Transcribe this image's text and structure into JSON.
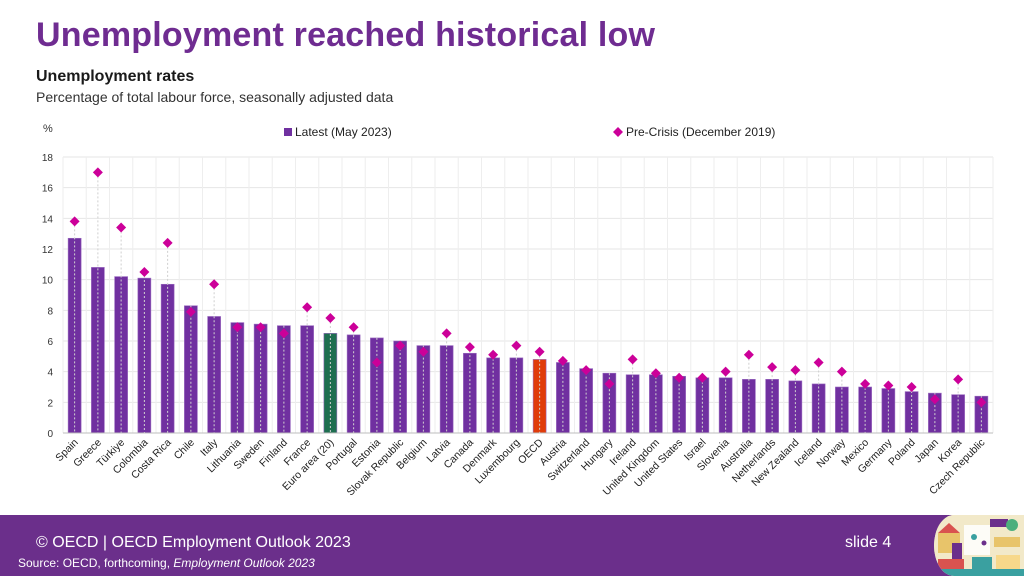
{
  "slide": {
    "title": "Unemployment reached historical low",
    "chart_title": "Unemployment rates",
    "chart_subtitle": "Percentage of total labour force, seasonally adjusted data",
    "footer": {
      "copyright": "© OECD | OECD Employment Outlook 2023",
      "source_prefix": "Source: OECD, forthcoming, ",
      "source_title": "Employment Outlook 2023",
      "slide_number": "slide 4",
      "illustration": "employment-outlook-cover-illustration"
    }
  },
  "colors": {
    "title": "#6f2c91",
    "bar": "#7030a0",
    "bar_euro": "#1e6e50",
    "bar_oecd": "#e03c0a",
    "diamond": "#cc0099",
    "footer": "#6b2f8b"
  },
  "chart_data": {
    "type": "bar",
    "title": "Unemployment rates",
    "subtitle": "Percentage of total labour force, seasonally adjusted data",
    "xlabel": "",
    "ylabel": "%",
    "ylim": [
      0,
      18
    ],
    "yticks": [
      0,
      2,
      4,
      6,
      8,
      10,
      12,
      14,
      16,
      18
    ],
    "grid": true,
    "legend_position": "top",
    "categories": [
      "Spain",
      "Greece",
      "Türkiye",
      "Colombia",
      "Costa Rica",
      "Chile",
      "Italy",
      "Lithuania",
      "Sweden",
      "Finland",
      "France",
      "Euro area (20)",
      "Portugal",
      "Estonia",
      "Slovak Republic",
      "Belgium",
      "Latvia",
      "Canada",
      "Denmark",
      "Luxembourg",
      "OECD",
      "Austria",
      "Switzerland",
      "Hungary",
      "Ireland",
      "United Kingdom",
      "United States",
      "Israel",
      "Slovenia",
      "Australia",
      "Netherlands",
      "New Zealand",
      "Iceland",
      "Norway",
      "Mexico",
      "Germany",
      "Poland",
      "Japan",
      "Korea",
      "Czech Republic"
    ],
    "highlight": {
      "Euro area (20)": "bar_euro",
      "OECD": "bar_oecd"
    },
    "series": [
      {
        "name": "Latest (May 2023)",
        "kind": "bar",
        "values": [
          12.7,
          10.8,
          10.2,
          10.1,
          9.7,
          8.3,
          7.6,
          7.2,
          7.1,
          7.0,
          7.0,
          6.5,
          6.4,
          6.2,
          6.0,
          5.7,
          5.7,
          5.2,
          4.9,
          4.9,
          4.8,
          4.6,
          4.2,
          3.9,
          3.8,
          3.8,
          3.7,
          3.6,
          3.6,
          3.5,
          3.5,
          3.4,
          3.2,
          3.0,
          3.0,
          2.9,
          2.7,
          2.6,
          2.5,
          2.4
        ]
      },
      {
        "name": "Pre-Crisis (December 2019)",
        "kind": "diamond",
        "values": [
          13.8,
          17.0,
          13.4,
          10.5,
          12.4,
          7.9,
          9.7,
          6.9,
          6.9,
          6.5,
          8.2,
          7.5,
          6.9,
          4.6,
          5.7,
          5.3,
          6.5,
          5.6,
          5.1,
          5.7,
          5.3,
          4.7,
          4.1,
          3.2,
          4.8,
          3.9,
          3.6,
          3.6,
          4.0,
          5.1,
          4.3,
          4.1,
          4.6,
          4.0,
          3.2,
          3.1,
          3.0,
          2.2,
          3.5,
          2.0
        ]
      }
    ]
  }
}
